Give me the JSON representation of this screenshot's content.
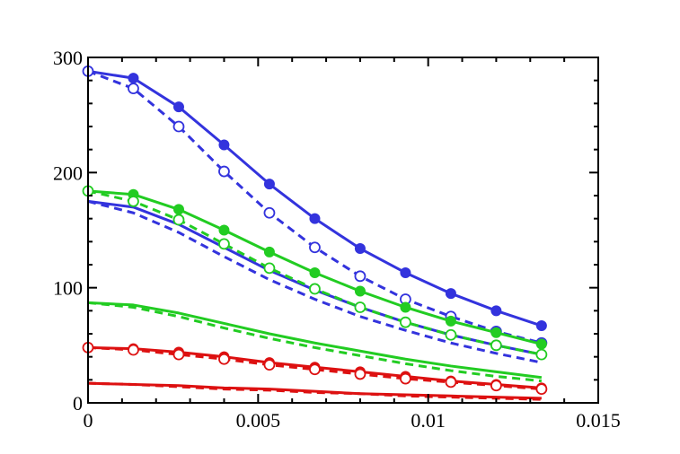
{
  "chart_data": {
    "type": "line",
    "title": "",
    "xlabel": "",
    "ylabel": "",
    "xlim": [
      0,
      0.015
    ],
    "ylim": [
      0,
      300
    ],
    "x_ticks": [
      0,
      0.005,
      0.01,
      0.015
    ],
    "x_tick_labels": [
      "0",
      "0.005",
      "0.01",
      "0.015"
    ],
    "y_ticks": [
      0,
      100,
      200,
      300
    ],
    "y_tick_labels": [
      "0",
      "100",
      "200",
      "300"
    ],
    "grid": false,
    "legend": "none",
    "x": [
      0,
      0.001333,
      0.002667,
      0.004,
      0.005333,
      0.006667,
      0.008,
      0.009333,
      0.010667,
      0.012,
      0.013333
    ],
    "series": [
      {
        "color": "#3333dd",
        "style": "solid",
        "marker": "filled-circle",
        "values": [
          288,
          282,
          257,
          224,
          190,
          160,
          134,
          113,
          95,
          80,
          67
        ]
      },
      {
        "color": "#3333dd",
        "style": "dashed",
        "marker": "open-circle",
        "values": [
          288,
          273,
          240,
          201,
          165,
          135,
          110,
          90,
          75,
          62,
          52
        ]
      },
      {
        "color": "#3333dd",
        "style": "solid",
        "marker": "none",
        "values": [
          175,
          170,
          155,
          135,
          115,
          98,
          83,
          70,
          59,
          50,
          42
        ]
      },
      {
        "color": "#3333dd",
        "style": "dashed",
        "marker": "none",
        "values": [
          175,
          165,
          148,
          127,
          107,
          90,
          75,
          63,
          52,
          43,
          35
        ]
      },
      {
        "color": "#22cc22",
        "style": "solid",
        "marker": "filled-circle",
        "values": [
          184,
          181,
          168,
          150,
          131,
          113,
          97,
          83,
          71,
          61,
          51
        ]
      },
      {
        "color": "#22cc22",
        "style": "dashed",
        "marker": "open-circle",
        "values": [
          184,
          175,
          159,
          138,
          117,
          99,
          83,
          70,
          59,
          50,
          42
        ]
      },
      {
        "color": "#22cc22",
        "style": "solid",
        "marker": "none",
        "values": [
          87,
          85,
          78,
          69,
          60,
          52,
          45,
          38,
          32,
          27,
          22
        ]
      },
      {
        "color": "#22cc22",
        "style": "dashed",
        "marker": "none",
        "values": [
          87,
          83,
          75,
          65,
          56,
          48,
          41,
          34,
          28,
          23,
          19
        ]
      },
      {
        "color": "#dd1111",
        "style": "solid",
        "marker": "filled-circle",
        "values": [
          48,
          47,
          44,
          40,
          35,
          31,
          27,
          23,
          19,
          16,
          13
        ]
      },
      {
        "color": "#dd1111",
        "style": "dashed",
        "marker": "open-circle",
        "values": [
          48,
          46,
          42,
          38,
          33,
          29,
          25,
          21,
          18,
          15,
          12
        ]
      },
      {
        "color": "#dd1111",
        "style": "solid",
        "marker": "none",
        "values": [
          17,
          16,
          15,
          13,
          12,
          10,
          8,
          7,
          6,
          5,
          4
        ]
      },
      {
        "color": "#dd1111",
        "style": "dashed",
        "marker": "none",
        "values": [
          17,
          16,
          14,
          12,
          11,
          9,
          8,
          6,
          5,
          4,
          3
        ]
      }
    ]
  }
}
